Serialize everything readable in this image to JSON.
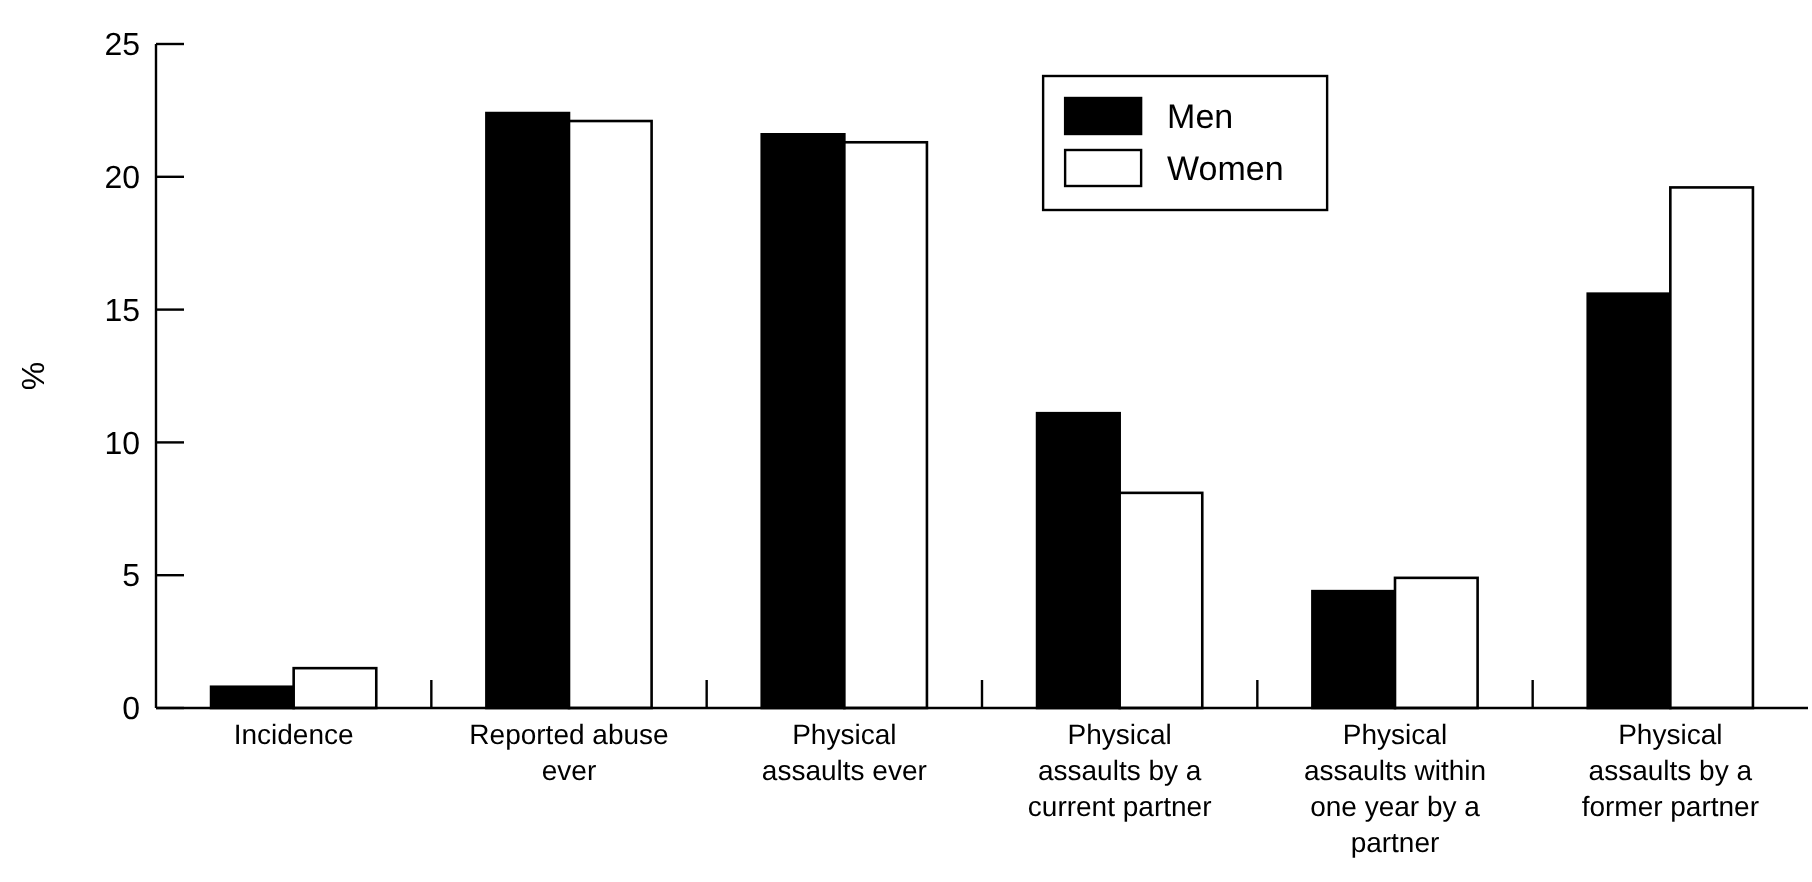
{
  "chart_data": {
    "type": "bar",
    "ylabel": "%",
    "categories": [
      "Incidence",
      "Reported abuse ever",
      "Physical assaults ever",
      "Physical assaults by a current partner",
      "Physical assaults within one year by a partner",
      "Physical assaults by a former partner"
    ],
    "series": [
      {
        "name": "Men",
        "color": "#000000",
        "values": [
          0.8,
          22.4,
          21.6,
          11.1,
          4.4,
          15.6
        ]
      },
      {
        "name": "Women",
        "color": "#ffffff",
        "values": [
          1.5,
          22.1,
          21.3,
          8.1,
          4.9,
          19.6
        ]
      }
    ],
    "ylim": [
      0,
      25
    ],
    "yticks": [
      0,
      5,
      10,
      15,
      20,
      25
    ],
    "grid": false,
    "legend": "top right"
  }
}
